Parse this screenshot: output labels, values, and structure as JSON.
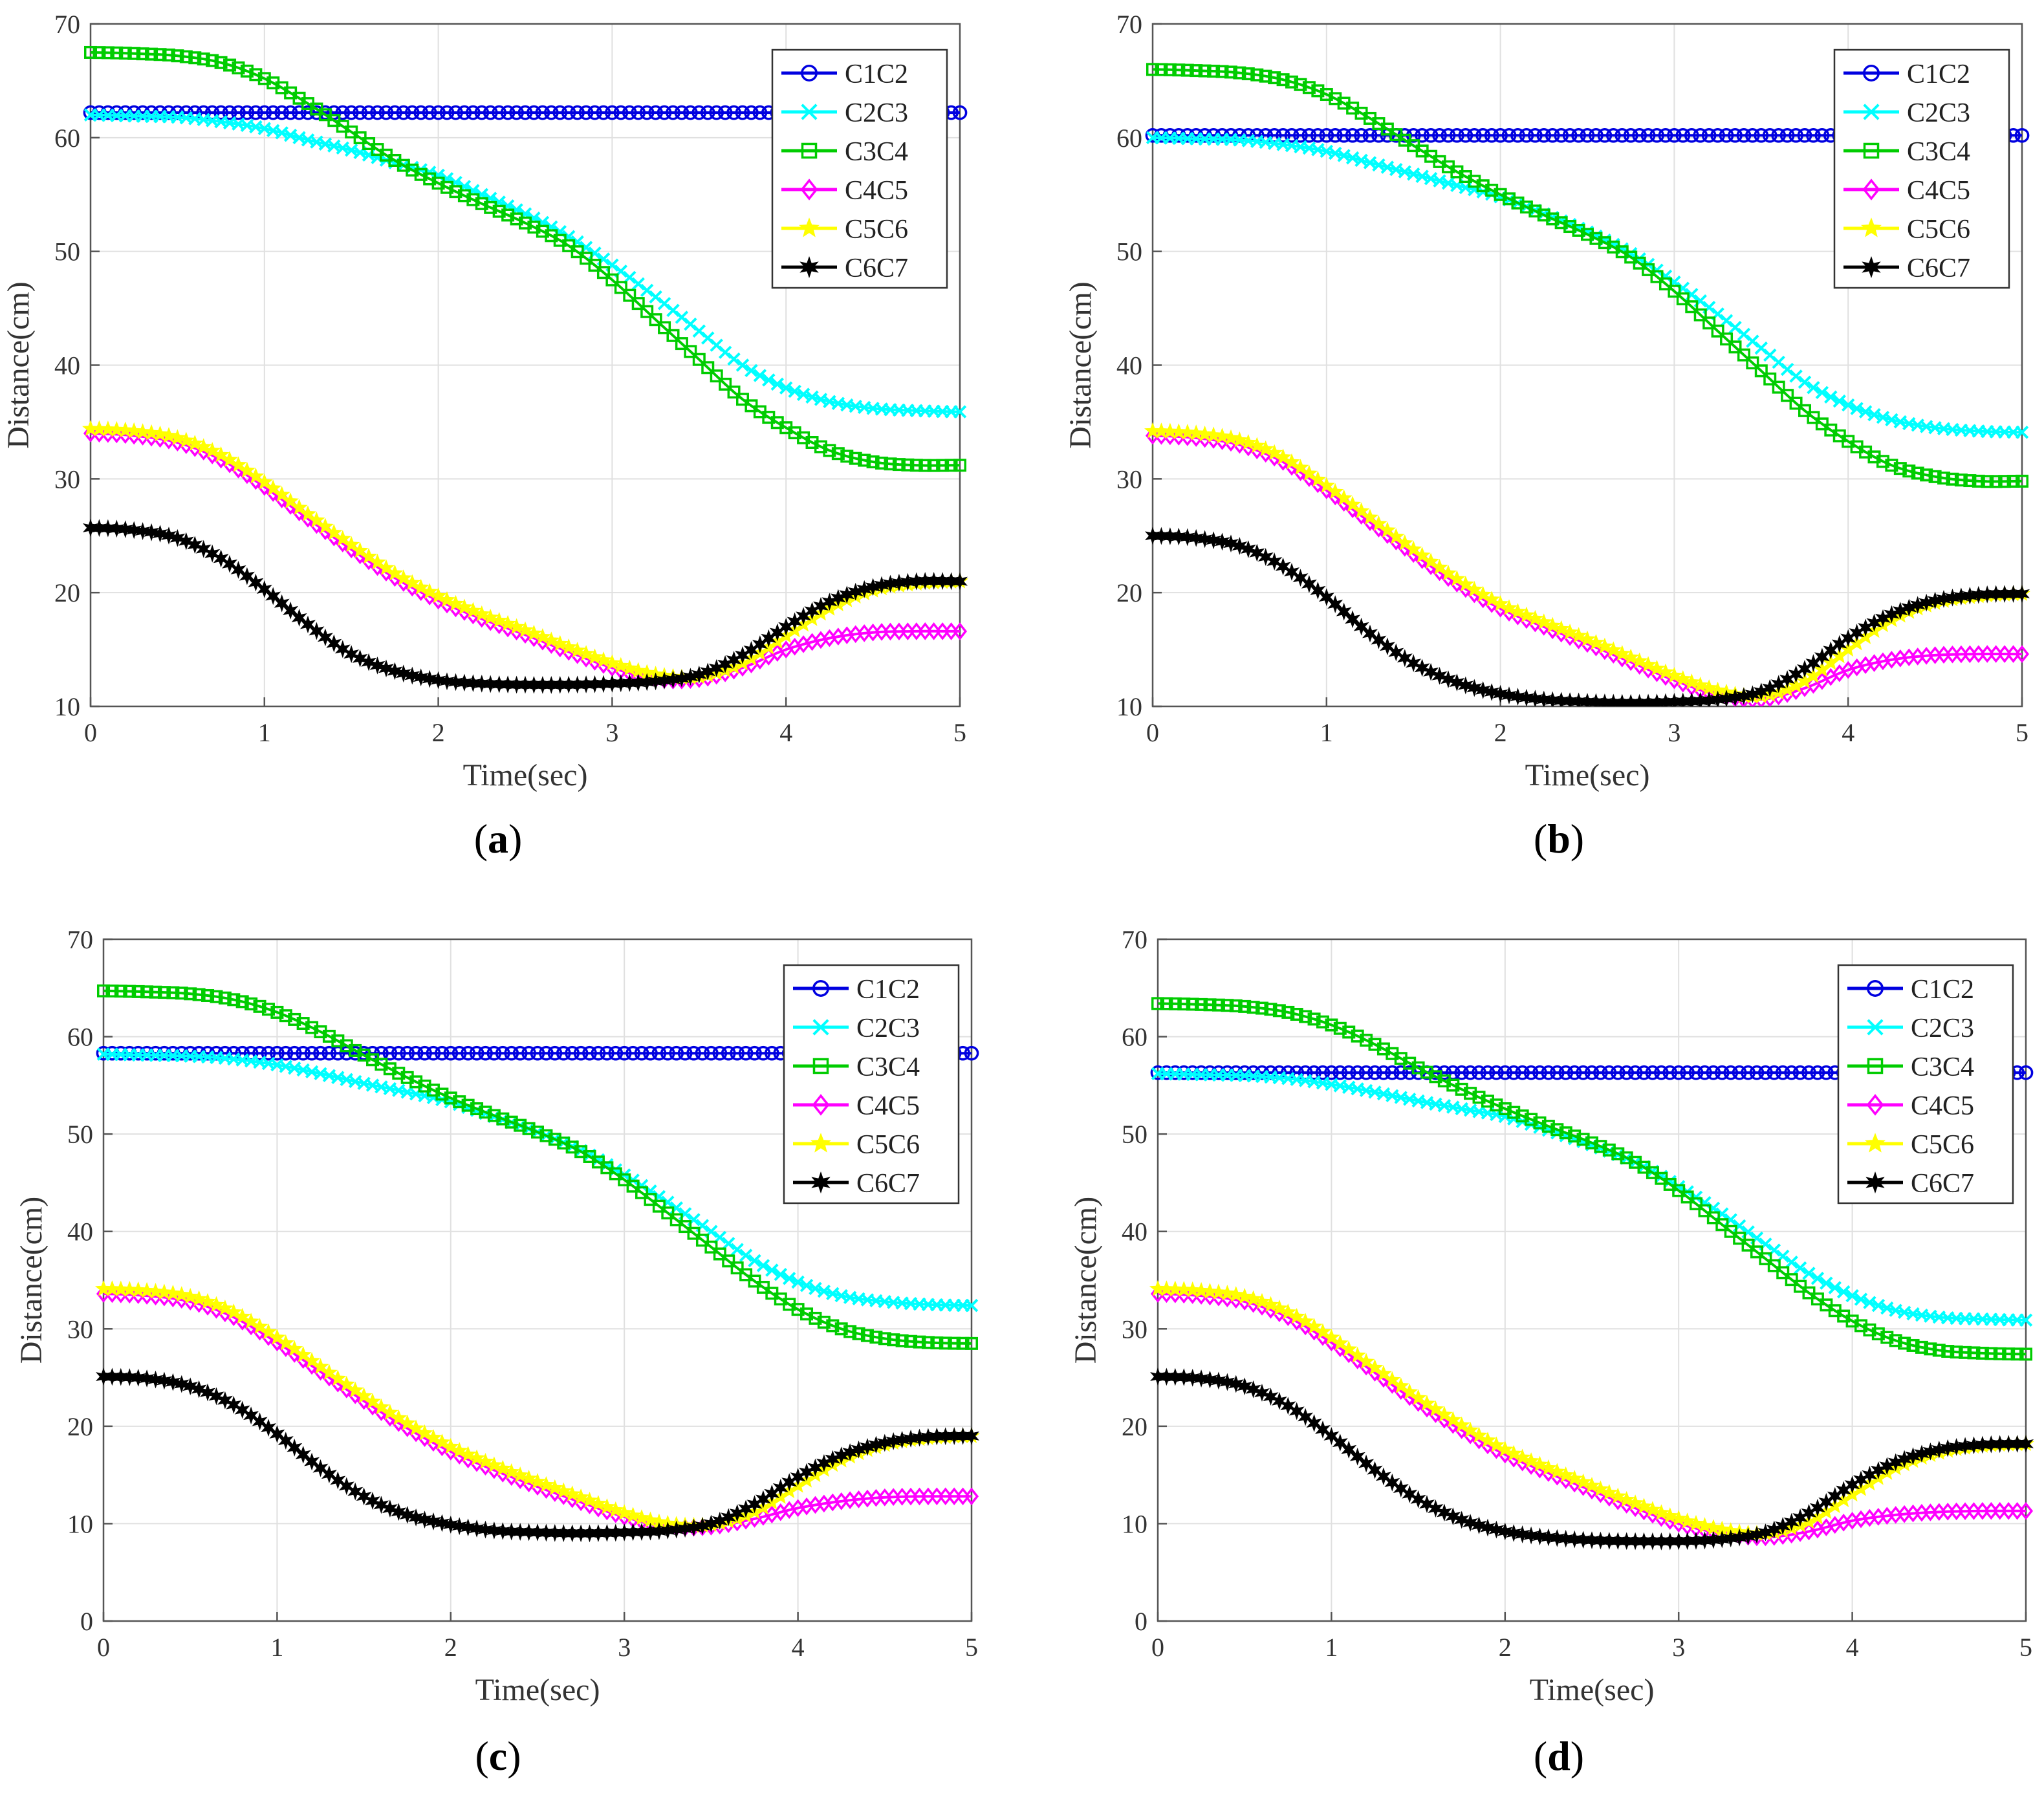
{
  "figure": {
    "colors": {
      "C1C2": "#0000e0",
      "C2C3": "#00ffff",
      "C3C4": "#00cc00",
      "C4C5": "#ff00ff",
      "C5C6": "#ffff00",
      "C6C7": "#000000",
      "grid": "#e0e0e0",
      "axis": "#555555"
    },
    "markers": {
      "C1C2": "circle",
      "C2C3": "x",
      "C3C4": "square",
      "C4C5": "diamond",
      "C5C6": "star",
      "C6C7": "hexagram"
    }
  },
  "chart_data": [
    {
      "type": "line",
      "panel": "a",
      "caption_open": "(",
      "caption_letter": "a",
      "caption_close": ")",
      "xlabel": "Time(sec)",
      "ylabel": "Distance(cm)",
      "xlim": [
        0,
        5
      ],
      "ylim": [
        10,
        70
      ],
      "xticks": [
        0,
        1,
        2,
        3,
        4,
        5
      ],
      "yticks": [
        10,
        20,
        30,
        40,
        50,
        60,
        70
      ],
      "grid": true,
      "legend": "top-right",
      "x": [
        0,
        0.25,
        0.5,
        0.75,
        1,
        1.25,
        1.5,
        1.75,
        2,
        2.25,
        2.5,
        2.75,
        3,
        3.25,
        3.5,
        3.75,
        4,
        4.25,
        4.5,
        4.75,
        5
      ],
      "series": [
        {
          "name": "C1C2",
          "values": [
            62.2,
            62.2,
            62.2,
            62.2,
            62.2,
            62.2,
            62.2,
            62.2,
            62.2,
            62.2,
            62.2,
            62.2,
            62.2,
            62.2,
            62.2,
            62.2,
            62.2,
            62.2,
            62.2,
            62.2,
            62.2
          ]
        },
        {
          "name": "C2C3",
          "values": [
            62,
            61.9,
            61.8,
            61.4,
            60.8,
            59.8,
            58.9,
            57.8,
            56.7,
            55,
            53.3,
            51.3,
            48.8,
            46,
            43,
            40,
            38,
            36.8,
            36.2,
            36,
            35.9
          ]
        },
        {
          "name": "C3C4",
          "values": [
            67.5,
            67.4,
            67.2,
            66.6,
            65.2,
            63,
            60.5,
            58,
            56,
            54.2,
            52.5,
            50.5,
            47.5,
            44,
            40.5,
            37,
            34.5,
            32.5,
            31.5,
            31.2,
            31.2
          ]
        },
        {
          "name": "C4C5",
          "values": [
            34,
            33.8,
            33.2,
            31.7,
            29.3,
            26.5,
            23.8,
            21.3,
            19.3,
            17.7,
            16.3,
            14.8,
            13.4,
            12.4,
            12.4,
            13.4,
            15,
            16,
            16.5,
            16.6,
            16.6
          ]
        },
        {
          "name": "C5C6",
          "values": [
            34.4,
            34.2,
            33.6,
            32.1,
            29.7,
            26.9,
            24.2,
            21.7,
            19.7,
            18.1,
            16.7,
            15.2,
            13.8,
            12.8,
            12.6,
            13.8,
            16.2,
            18.6,
            20.2,
            20.8,
            21
          ]
        },
        {
          "name": "C6C7",
          "values": [
            25.7,
            25.5,
            24.8,
            23,
            20.3,
            17.2,
            14.6,
            13.1,
            12.3,
            12,
            11.9,
            11.9,
            12,
            12.2,
            12.8,
            14.5,
            17,
            19.2,
            20.5,
            21,
            21
          ]
        }
      ]
    },
    {
      "type": "line",
      "panel": "b",
      "caption_open": "(",
      "caption_letter": "b",
      "caption_close": ")",
      "xlabel": "Time(sec)",
      "ylabel": "Distance(cm)",
      "xlim": [
        0,
        5
      ],
      "ylim": [
        10,
        70
      ],
      "xticks": [
        0,
        1,
        2,
        3,
        4,
        5
      ],
      "yticks": [
        10,
        20,
        30,
        40,
        50,
        60,
        70
      ],
      "grid": true,
      "legend": "top-right",
      "x": [
        0,
        0.25,
        0.5,
        0.75,
        1,
        1.25,
        1.5,
        1.75,
        2,
        2.25,
        2.5,
        2.75,
        3,
        3.25,
        3.5,
        3.75,
        4,
        4.25,
        4.5,
        4.75,
        5
      ],
      "series": [
        {
          "name": "C1C2",
          "values": [
            60.2,
            60.2,
            60.2,
            60.2,
            60.2,
            60.2,
            60.2,
            60.2,
            60.2,
            60.2,
            60.2,
            60.2,
            60.2,
            60.2,
            60.2,
            60.2,
            60.2,
            60.2,
            60.2,
            60.2,
            60.2
          ]
        },
        {
          "name": "C2C3",
          "values": [
            60,
            59.9,
            59.8,
            59.4,
            58.8,
            57.8,
            56.8,
            55.8,
            54.8,
            53.3,
            51.7,
            49.8,
            47.3,
            44.5,
            41.5,
            38.5,
            36.5,
            35.2,
            34.5,
            34.2,
            34.1
          ]
        },
        {
          "name": "C3C4",
          "values": [
            66,
            65.9,
            65.7,
            65.1,
            63.8,
            61.7,
            59.3,
            57,
            55,
            53.2,
            51.5,
            49.5,
            46.5,
            43,
            39.5,
            36,
            33.3,
            31.2,
            30.2,
            29.8,
            29.8
          ]
        },
        {
          "name": "C4C5",
          "values": [
            33.8,
            33.6,
            33,
            31.5,
            29,
            26.2,
            23.4,
            20.8,
            18.6,
            17,
            15.5,
            13.9,
            12.3,
            11,
            10.6,
            11.6,
            13.2,
            14.1,
            14.5,
            14.6,
            14.6
          ]
        },
        {
          "name": "C5C6",
          "values": [
            34.2,
            34,
            33.4,
            31.9,
            29.4,
            26.6,
            23.8,
            21.2,
            19,
            17.4,
            15.9,
            14.3,
            12.7,
            11.4,
            10.9,
            12.2,
            15,
            17.6,
            19.1,
            19.7,
            19.9
          ]
        },
        {
          "name": "C6C7",
          "values": [
            25,
            24.8,
            24.1,
            22.3,
            19.6,
            16.4,
            13.8,
            12.1,
            11.1,
            10.6,
            10.4,
            10.3,
            10.4,
            10.6,
            11.3,
            13.3,
            16,
            18.1,
            19.3,
            19.8,
            19.9
          ]
        }
      ]
    },
    {
      "type": "line",
      "panel": "c",
      "caption_open": "(",
      "caption_letter": "c",
      "caption_close": ")",
      "xlabel": "Time(sec)",
      "ylabel": "Distance(cm)",
      "xlim": [
        0,
        5
      ],
      "ylim": [
        0,
        70
      ],
      "xticks": [
        0,
        1,
        2,
        3,
        4,
        5
      ],
      "yticks": [
        0,
        10,
        20,
        30,
        40,
        50,
        60,
        70
      ],
      "grid": true,
      "legend": "top-right",
      "x": [
        0,
        0.25,
        0.5,
        0.75,
        1,
        1.25,
        1.5,
        1.75,
        2,
        2.25,
        2.5,
        2.75,
        3,
        3.25,
        3.5,
        3.75,
        4,
        4.25,
        4.5,
        4.75,
        5
      ],
      "series": [
        {
          "name": "C1C2",
          "values": [
            58.3,
            58.3,
            58.3,
            58.3,
            58.3,
            58.3,
            58.3,
            58.3,
            58.3,
            58.3,
            58.3,
            58.3,
            58.3,
            58.3,
            58.3,
            58.3,
            58.3,
            58.3,
            58.3,
            58.3,
            58.3
          ]
        },
        {
          "name": "C2C3",
          "values": [
            58.2,
            58.1,
            58,
            57.7,
            57.1,
            56.2,
            55.2,
            54.3,
            53.3,
            51.8,
            50.2,
            48.3,
            45.8,
            43,
            40,
            37,
            34.8,
            33.4,
            32.8,
            32.5,
            32.4
          ]
        },
        {
          "name": "C3C4",
          "values": [
            64.7,
            64.6,
            64.4,
            63.8,
            62.5,
            60.5,
            58.1,
            55.8,
            53.7,
            51.9,
            50.2,
            48.2,
            45.3,
            41.9,
            38.4,
            34.9,
            32,
            30,
            29,
            28.6,
            28.5
          ]
        },
        {
          "name": "C4C5",
          "values": [
            33.6,
            33.4,
            32.8,
            31.2,
            28.6,
            25.6,
            22.6,
            19.8,
            17.4,
            15.5,
            13.8,
            12.2,
            10.7,
            9.7,
            9.7,
            10.5,
            11.6,
            12.3,
            12.7,
            12.8,
            12.8
          ]
        },
        {
          "name": "C5C6",
          "values": [
            34.1,
            33.9,
            33.3,
            31.7,
            29.1,
            26.1,
            23.1,
            20.3,
            17.9,
            16,
            14.3,
            12.7,
            11.1,
            10,
            9.9,
            11.2,
            13.9,
            16.5,
            18.1,
            18.8,
            19
          ]
        },
        {
          "name": "C6C7",
          "values": [
            25.1,
            24.9,
            24.1,
            22.2,
            19.2,
            15.7,
            12.8,
            10.9,
            9.9,
            9.3,
            9.1,
            9,
            9.1,
            9.3,
            10,
            12,
            14.8,
            17,
            18.3,
            18.9,
            19
          ]
        }
      ]
    },
    {
      "type": "line",
      "panel": "d",
      "caption_open": "(",
      "caption_letter": "d",
      "caption_close": ")",
      "xlabel": "Time(sec)",
      "ylabel": "Distance(cm)",
      "xlim": [
        0,
        5
      ],
      "ylim": [
        0,
        70
      ],
      "xticks": [
        0,
        1,
        2,
        3,
        4,
        5
      ],
      "yticks": [
        0,
        10,
        20,
        30,
        40,
        50,
        60,
        70
      ],
      "grid": true,
      "legend": "top-right",
      "x": [
        0,
        0.25,
        0.5,
        0.75,
        1,
        1.25,
        1.5,
        1.75,
        2,
        2.25,
        2.5,
        2.75,
        3,
        3.25,
        3.5,
        3.75,
        4,
        4.25,
        4.5,
        4.75,
        5
      ],
      "series": [
        {
          "name": "C1C2",
          "values": [
            56.3,
            56.3,
            56.3,
            56.3,
            56.3,
            56.3,
            56.3,
            56.3,
            56.3,
            56.3,
            56.3,
            56.3,
            56.3,
            56.3,
            56.3,
            56.3,
            56.3,
            56.3,
            56.3,
            56.3,
            56.3
          ]
        },
        {
          "name": "C2C3",
          "values": [
            56.2,
            56.1,
            56,
            55.7,
            55.1,
            54.3,
            53.4,
            52.6,
            51.8,
            50.4,
            48.9,
            47.1,
            44.6,
            41.8,
            38.7,
            35.7,
            33.4,
            31.9,
            31.2,
            31,
            30.9
          ]
        },
        {
          "name": "C3C4",
          "values": [
            63.4,
            63.3,
            63.1,
            62.5,
            61.2,
            59.2,
            56.8,
            54.6,
            52.6,
            50.8,
            49.1,
            47.1,
            44.2,
            40.7,
            37.2,
            33.7,
            30.8,
            28.8,
            27.8,
            27.5,
            27.4
          ]
        },
        {
          "name": "C4C5",
          "values": [
            33.6,
            33.4,
            32.8,
            31.2,
            28.6,
            25.5,
            22.4,
            19.6,
            17.1,
            15.2,
            13.4,
            11.6,
            10,
            9,
            8.6,
            9.2,
            10.3,
            10.9,
            11.2,
            11.3,
            11.3
          ]
        },
        {
          "name": "C5C6",
          "values": [
            34.1,
            33.9,
            33.3,
            31.7,
            29.1,
            26,
            22.9,
            20.1,
            17.6,
            15.7,
            13.9,
            12.1,
            10.5,
            9.4,
            9,
            10.2,
            13,
            15.7,
            17.3,
            18,
            18.2
          ]
        },
        {
          "name": "C6C7",
          "values": [
            25.1,
            24.9,
            24.1,
            22.1,
            19,
            15.5,
            12.5,
            10.4,
            9.2,
            8.6,
            8.3,
            8.2,
            8.2,
            8.4,
            9.1,
            11.1,
            14,
            16.3,
            17.6,
            18.1,
            18.2
          ]
        }
      ]
    }
  ]
}
